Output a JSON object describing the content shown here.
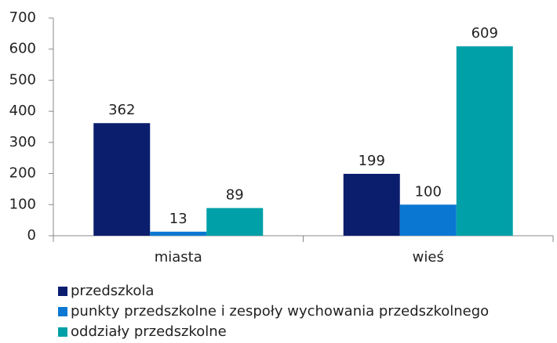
{
  "chart_data": {
    "type": "bar",
    "categories": [
      "miasta",
      "wieś"
    ],
    "series": [
      {
        "name": "przedszkola",
        "color": "#0b1e6e",
        "values": [
          362,
          199
        ]
      },
      {
        "name": "punkty przedszkolne i zespoły wychowania przedszkolnego",
        "color": "#0a78d2",
        "values": [
          13,
          100
        ]
      },
      {
        "name": "oddziały przedszkolne",
        "color": "#00a0a8",
        "values": [
          89,
          609
        ]
      }
    ],
    "ylim": [
      0,
      700
    ],
    "yticks": [
      0,
      100,
      200,
      300,
      400,
      500,
      600,
      700
    ],
    "grid": false,
    "legend": "bottom"
  }
}
